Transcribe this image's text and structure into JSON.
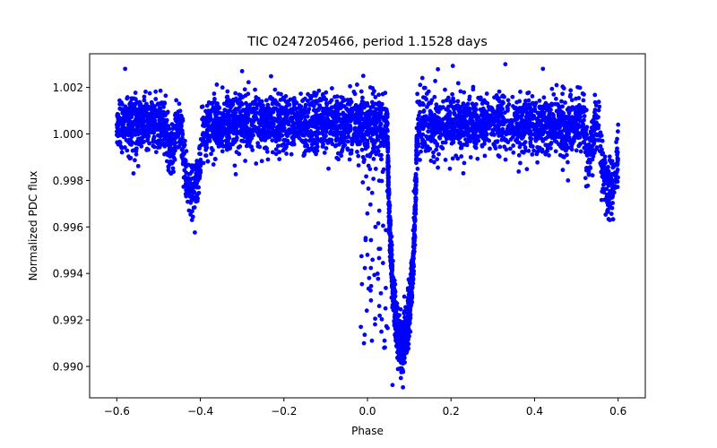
{
  "chart_data": {
    "type": "scatter",
    "title": "TIC 0247205466, period 1.1528 days",
    "xlabel": "Phase",
    "ylabel": "Normalized PDC flux",
    "xlim": [
      -0.665,
      0.665
    ],
    "ylim": [
      0.98865,
      1.00345
    ],
    "xticks": [
      -0.6,
      -0.4,
      -0.2,
      0.0,
      0.2,
      0.4,
      0.6
    ],
    "xtick_labels": [
      "−0.6",
      "−0.4",
      "−0.2",
      "0.0",
      "0.2",
      "0.4",
      "0.6"
    ],
    "yticks": [
      0.99,
      0.992,
      0.994,
      0.996,
      0.998,
      1.0,
      1.002
    ],
    "ytick_labels": [
      "0.990",
      "0.992",
      "0.994",
      "0.996",
      "0.998",
      "1.000",
      "1.002"
    ],
    "grid": false,
    "marker_color": "#0000ff",
    "series": [
      {
        "name": "PDC flux",
        "x_range": [
          -0.6,
          0.6
        ],
        "baseline": 1.0004,
        "scatter_sd": 0.0007,
        "primary_eclipse": {
          "center": 0.083,
          "depth": 0.0095,
          "half_width": 0.035
        },
        "secondary_dips": [
          {
            "center": -0.42,
            "depth": 0.0028,
            "half_width": 0.025
          },
          {
            "center": -0.47,
            "depth": 0.0012,
            "half_width": 0.012
          },
          {
            "center": 0.58,
            "depth": 0.0028,
            "half_width": 0.025
          },
          {
            "center": 0.53,
            "depth": 0.0012,
            "half_width": 0.012
          }
        ],
        "sample_points": [
          [
            -0.6,
            1.0004
          ],
          [
            -0.58,
            1.0028
          ],
          [
            -0.5,
            1.0004
          ],
          [
            -0.47,
            0.9983
          ],
          [
            -0.42,
            0.9963
          ],
          [
            -0.35,
            1.0004
          ],
          [
            -0.3,
            1.0027
          ],
          [
            -0.2,
            1.0004
          ],
          [
            -0.1,
            1.0004
          ],
          [
            -0.01,
            1.0025
          ],
          [
            0.0,
            0.9948
          ],
          [
            0.02,
            0.9985
          ],
          [
            0.04,
            0.9908
          ],
          [
            0.06,
            0.9892
          ],
          [
            0.08,
            0.9895
          ],
          [
            0.085,
            0.9891
          ],
          [
            0.1,
            0.993
          ],
          [
            0.12,
            0.9985
          ],
          [
            0.2,
            1.0004
          ],
          [
            0.33,
            1.003
          ],
          [
            0.42,
            1.0028
          ],
          [
            0.48,
            0.998
          ],
          [
            0.53,
            0.9983
          ],
          [
            0.58,
            0.9963
          ],
          [
            0.6,
            1.0004
          ]
        ]
      }
    ]
  }
}
